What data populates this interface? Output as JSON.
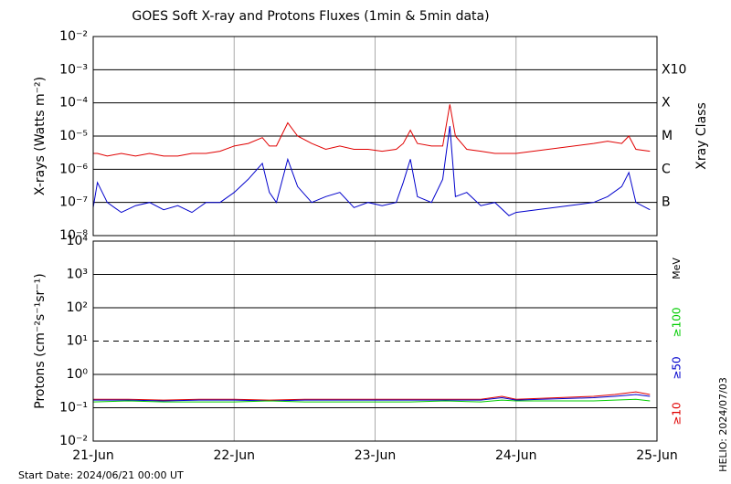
{
  "title": "GOES Soft X-ray and Protons Fluxes   (1min & 5min data)",
  "footer": "Start Date: 2024/06/21 00:00 UT",
  "credit": "HELIO: 2024/07/03",
  "chart_data": [
    {
      "type": "line",
      "log_scale": true,
      "ylabel": "X-rays (Watts m⁻²)",
      "y2label": "Xray Class",
      "ylim": [
        1e-08,
        0.01
      ],
      "yticks": [
        {
          "value": 1e-08,
          "label": "10⁻⁸"
        },
        {
          "value": 1e-07,
          "label": "10⁻⁷"
        },
        {
          "value": 1e-06,
          "label": "10⁻⁶"
        },
        {
          "value": 1e-05,
          "label": "10⁻⁵"
        },
        {
          "value": 0.0001,
          "label": "10⁻⁴"
        },
        {
          "value": 0.001,
          "label": "10⁻³"
        },
        {
          "value": 0.01,
          "label": "10⁻²"
        }
      ],
      "y2lim": [
        1e-08,
        0.01
      ],
      "y2ticks": [
        {
          "value": 1e-07,
          "label": "B"
        },
        {
          "value": 1e-06,
          "label": "C"
        },
        {
          "value": 1e-05,
          "label": "M"
        },
        {
          "value": 0.0001,
          "label": "X"
        },
        {
          "value": 0.001,
          "label": "X10"
        }
      ],
      "xlim": [
        21,
        25
      ],
      "xticks": [
        21,
        22,
        23,
        24,
        25
      ],
      "x": [
        21.0,
        21.03,
        21.1,
        21.2,
        21.3,
        21.4,
        21.5,
        21.6,
        21.7,
        21.8,
        21.9,
        22.0,
        22.1,
        22.2,
        22.25,
        22.3,
        22.38,
        22.45,
        22.55,
        22.65,
        22.75,
        22.85,
        22.95,
        23.05,
        23.15,
        23.2,
        23.25,
        23.3,
        23.4,
        23.48,
        23.53,
        23.57,
        23.65,
        23.75,
        23.85,
        23.95,
        24.0,
        24.55,
        24.65,
        24.75,
        24.8,
        24.85,
        24.95
      ],
      "series": [
        {
          "color": "#e00000",
          "values": [
            3e-06,
            3e-06,
            2.5e-06,
            3e-06,
            2.5e-06,
            3e-06,
            2.5e-06,
            2.5e-06,
            3e-06,
            3e-06,
            3.5e-06,
            5e-06,
            6e-06,
            9e-06,
            5e-06,
            5e-06,
            2.5e-05,
            1e-05,
            6e-06,
            4e-06,
            5e-06,
            4e-06,
            4e-06,
            3.5e-06,
            4e-06,
            6e-06,
            1.5e-05,
            6e-06,
            5e-06,
            5e-06,
            9e-05,
            1e-05,
            4e-06,
            3.5e-06,
            3e-06,
            3e-06,
            3e-06,
            6e-06,
            7e-06,
            6e-06,
            1e-05,
            4e-06,
            3.5e-06
          ]
        },
        {
          "color": "#0000cc",
          "values": [
            7e-08,
            4e-07,
            1e-07,
            5e-08,
            8e-08,
            1e-07,
            6e-08,
            8e-08,
            5e-08,
            1e-07,
            1e-07,
            2e-07,
            5e-07,
            1.5e-06,
            2e-07,
            1e-07,
            2e-06,
            3e-07,
            1e-07,
            1.5e-07,
            2e-07,
            7e-08,
            1e-07,
            8e-08,
            1e-07,
            4e-07,
            2e-06,
            1.5e-07,
            1e-07,
            5e-07,
            2e-05,
            1.5e-07,
            2e-07,
            8e-08,
            1e-07,
            4e-08,
            5e-08,
            1e-07,
            1.5e-07,
            3e-07,
            8e-07,
            1e-07,
            6e-08
          ]
        }
      ]
    },
    {
      "type": "line",
      "log_scale": true,
      "ylabel": "Protons (cm⁻²s⁻¹sr⁻¹)",
      "legend_title": "MeV",
      "ylim": [
        0.01,
        10000.0
      ],
      "yticks": [
        {
          "value": 0.01,
          "label": "10⁻²"
        },
        {
          "value": 0.1,
          "label": "10⁻¹"
        },
        {
          "value": 1,
          "label": "10⁰"
        },
        {
          "value": 10,
          "label": "10¹"
        },
        {
          "value": 100,
          "label": "10²"
        },
        {
          "value": 1000,
          "label": "10³"
        },
        {
          "value": 10000,
          "label": "10⁴"
        }
      ],
      "dashed_line": 10,
      "xlim": [
        21,
        25
      ],
      "xticks": [
        {
          "value": 21,
          "label": "21-Jun"
        },
        {
          "value": 22,
          "label": "22-Jun"
        },
        {
          "value": 23,
          "label": "23-Jun"
        },
        {
          "value": 24,
          "label": "24-Jun"
        },
        {
          "value": 25,
          "label": "25-Jun"
        }
      ],
      "x": [
        21.0,
        21.25,
        21.5,
        21.75,
        22.0,
        22.25,
        22.5,
        22.75,
        23.0,
        23.25,
        23.5,
        23.75,
        23.9,
        24.0,
        24.55,
        24.7,
        24.85,
        24.95
      ],
      "series": [
        {
          "name": "≥10",
          "color": "#e00000",
          "values": [
            0.18,
            0.18,
            0.17,
            0.18,
            0.18,
            0.17,
            0.18,
            0.18,
            0.18,
            0.18,
            0.18,
            0.18,
            0.22,
            0.18,
            0.22,
            0.25,
            0.3,
            0.25
          ]
        },
        {
          "name": "≥50",
          "color": "#0000cc",
          "values": [
            0.17,
            0.17,
            0.16,
            0.17,
            0.17,
            0.16,
            0.17,
            0.17,
            0.17,
            0.17,
            0.17,
            0.17,
            0.2,
            0.17,
            0.2,
            0.22,
            0.25,
            0.22
          ]
        },
        {
          "name": "≥100",
          "color": "#00cc00",
          "values": [
            0.15,
            0.16,
            0.15,
            0.15,
            0.15,
            0.16,
            0.15,
            0.15,
            0.15,
            0.15,
            0.16,
            0.15,
            0.17,
            0.16,
            0.16,
            0.17,
            0.18,
            0.16
          ]
        }
      ]
    }
  ]
}
